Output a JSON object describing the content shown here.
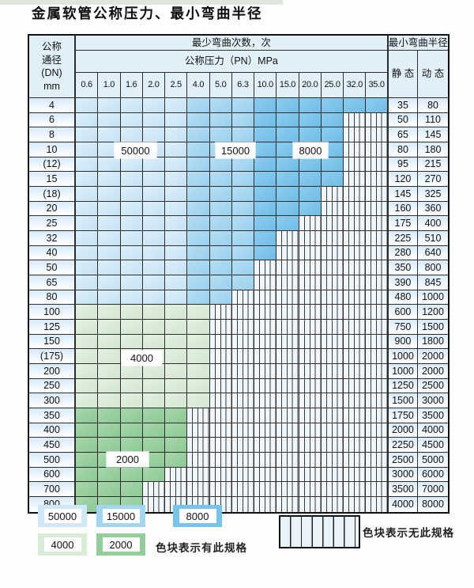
{
  "title": "金属软管公称压力、最小弯曲半径",
  "table": {
    "dn_header_lines": [
      "公称",
      "通径",
      "(DN)",
      "mm"
    ],
    "bend_times_header": "最少弯曲次数，次",
    "pressure_header": "公称压力（PN）MPa",
    "pressures": [
      "0.6",
      "1.0",
      "1.6",
      "2.0",
      "2.5",
      "4.0",
      "5.0",
      "6.3",
      "10.0",
      "15.0",
      "20.0",
      "25.0",
      "32.0",
      "35.0"
    ],
    "radius_header": "最小弯曲半径",
    "static_header": "静 态",
    "dynamic_header": "动 态",
    "rows": [
      {
        "dn": "4",
        "filled": 14,
        "static": "35",
        "dynamic": "80"
      },
      {
        "dn": "6",
        "filled": 12,
        "static": "50",
        "dynamic": "110"
      },
      {
        "dn": "8",
        "filled": 12,
        "static": "65",
        "dynamic": "145"
      },
      {
        "dn": "10",
        "filled": 12,
        "static": "80",
        "dynamic": "180"
      },
      {
        "dn": "(12)",
        "filled": 12,
        "static": "95",
        "dynamic": "215"
      },
      {
        "dn": "15",
        "filled": 12,
        "static": "120",
        "dynamic": "270"
      },
      {
        "dn": "(18)",
        "filled": 11,
        "static": "145",
        "dynamic": "325"
      },
      {
        "dn": "20",
        "filled": 11,
        "static": "160",
        "dynamic": "360"
      },
      {
        "dn": "25",
        "filled": 10,
        "static": "175",
        "dynamic": "400"
      },
      {
        "dn": "32",
        "filled": 9,
        "static": "225",
        "dynamic": "510"
      },
      {
        "dn": "40",
        "filled": 9,
        "static": "280",
        "dynamic": "640"
      },
      {
        "dn": "50",
        "filled": 8,
        "static": "350",
        "dynamic": "800"
      },
      {
        "dn": "65",
        "filled": 8,
        "static": "390",
        "dynamic": "845"
      },
      {
        "dn": "80",
        "filled": 7,
        "static": "480",
        "dynamic": "1000"
      },
      {
        "dn": "100",
        "filled": 6,
        "static": "600",
        "dynamic": "1200"
      },
      {
        "dn": "125",
        "filled": 6,
        "static": "750",
        "dynamic": "1500"
      },
      {
        "dn": "150",
        "filled": 6,
        "static": "900",
        "dynamic": "1800"
      },
      {
        "dn": "(175)",
        "filled": 6,
        "static": "1000",
        "dynamic": "2000"
      },
      {
        "dn": "200",
        "filled": 6,
        "static": "1000",
        "dynamic": "2000"
      },
      {
        "dn": "250",
        "filled": 6,
        "static": "1250",
        "dynamic": "2500"
      },
      {
        "dn": "300",
        "filled": 6,
        "static": "1500",
        "dynamic": "3000"
      },
      {
        "dn": "350",
        "filled": 5,
        "static": "1750",
        "dynamic": "3500"
      },
      {
        "dn": "400",
        "filled": 5,
        "static": "2000",
        "dynamic": "4000"
      },
      {
        "dn": "450",
        "filled": 5,
        "static": "2250",
        "dynamic": "4500"
      },
      {
        "dn": "500",
        "filled": 5,
        "static": "2500",
        "dynamic": "5000"
      },
      {
        "dn": "600",
        "filled": 4,
        "static": "3000",
        "dynamic": "6000"
      },
      {
        "dn": "700",
        "filled": 3,
        "static": "3500",
        "dynamic": "7000"
      },
      {
        "dn": "800",
        "filled": 3,
        "static": "4000",
        "dynamic": "8000"
      }
    ],
    "fill_rules": {
      "blue_row_max_index": 13,
      "light_blue_cols": 5,
      "mid_blue_cols": 3,
      "light_green_row_max_index": 20
    }
  },
  "overlay_labels": [
    {
      "text": "50000"
    },
    {
      "text": "15000"
    },
    {
      "text": "8000"
    },
    {
      "text": "4000"
    },
    {
      "text": "2000"
    }
  ],
  "legend": {
    "chips": [
      {
        "label": "50000",
        "color_key": "blue_50000"
      },
      {
        "label": "15000",
        "color_key": "blue_15000"
      },
      {
        "label": "8000",
        "color_key": "blue_8000"
      },
      {
        "label": "4000",
        "color_key": "green_4000"
      },
      {
        "label": "2000",
        "color_key": "green_2000"
      }
    ],
    "has_spec_label": "色块表示有此规格",
    "no_spec_label": "色块表示无此规格"
  },
  "colors": {
    "blue_50000": "#cfe7f7",
    "blue_15000": "#a3d4f0",
    "blue_8000": "#79c2e9",
    "green_4000": "#d9ecd7",
    "green_2000": "#93cd9c",
    "grid_line": "#2d2d2d",
    "header_bg": "#e1eff9",
    "na_stripe_bg": "#eff6fc"
  }
}
